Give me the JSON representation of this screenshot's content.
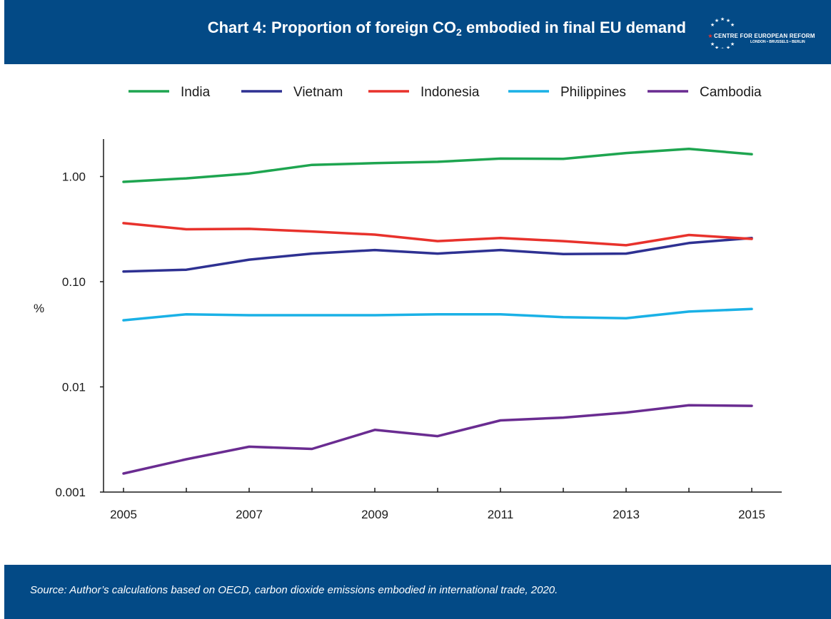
{
  "header": {
    "title_text": "Chart 4: Proportion of foreign CO",
    "title_sub": "2",
    "title_tail": " embodied in final EU demand",
    "logo_name": "CENTRE FOR EUROPEAN REFORM",
    "logo_cities": "LONDON • BRUSSELS • BERLIN"
  },
  "footer": {
    "source": "Source: Author’s calculations based on OECD, carbon dioxide emissions embodied in international trade, 2020."
  },
  "colors": {
    "header_bg": "#034a86",
    "India": "#1ea550",
    "Vietnam": "#2e3192",
    "Indonesia": "#e8322c",
    "Philippines": "#1ab1e6",
    "Cambodia": "#6a2c91"
  },
  "chart_data": {
    "type": "line",
    "title": "Chart 4: Proportion of foreign CO2 embodied in final EU demand",
    "xlabel": "",
    "ylabel": "%",
    "y_scale": "log",
    "ylim": [
      0.001,
      2.2
    ],
    "xlim": [
      2005,
      2015
    ],
    "grid": false,
    "legend_position": "top",
    "x": [
      2005,
      2006,
      2007,
      2008,
      2009,
      2010,
      2011,
      2012,
      2013,
      2014,
      2015
    ],
    "x_tick_labels": [
      "2005",
      "2007",
      "2009",
      "2011",
      "2013",
      "2015"
    ],
    "y_tick_labels": [
      "1.00",
      "0.10",
      "0.01",
      "0.001"
    ],
    "y_ticks": [
      1,
      0.1,
      0.01,
      0.001
    ],
    "series": [
      {
        "name": "India",
        "color": "#1ea550",
        "values": [
          0.89,
          0.96,
          1.07,
          1.29,
          1.34,
          1.38,
          1.48,
          1.47,
          1.67,
          1.83,
          1.63
        ]
      },
      {
        "name": "Vietnam",
        "color": "#2e3192",
        "values": [
          0.125,
          0.13,
          0.162,
          0.185,
          0.2,
          0.185,
          0.2,
          0.183,
          0.185,
          0.233,
          0.26
        ]
      },
      {
        "name": "Indonesia",
        "color": "#e8322c",
        "values": [
          0.36,
          0.315,
          0.318,
          0.3,
          0.28,
          0.243,
          0.26,
          0.243,
          0.222,
          0.278,
          0.255
        ]
      },
      {
        "name": "Philippines",
        "color": "#1ab1e6",
        "values": [
          0.043,
          0.049,
          0.048,
          0.048,
          0.048,
          0.049,
          0.049,
          0.046,
          0.045,
          0.052,
          0.055
        ]
      },
      {
        "name": "Cambodia",
        "color": "#6a2c91",
        "values": [
          0.0015,
          0.00205,
          0.0027,
          0.00257,
          0.0039,
          0.0034,
          0.0048,
          0.0051,
          0.0057,
          0.0067,
          0.0066
        ]
      }
    ]
  }
}
